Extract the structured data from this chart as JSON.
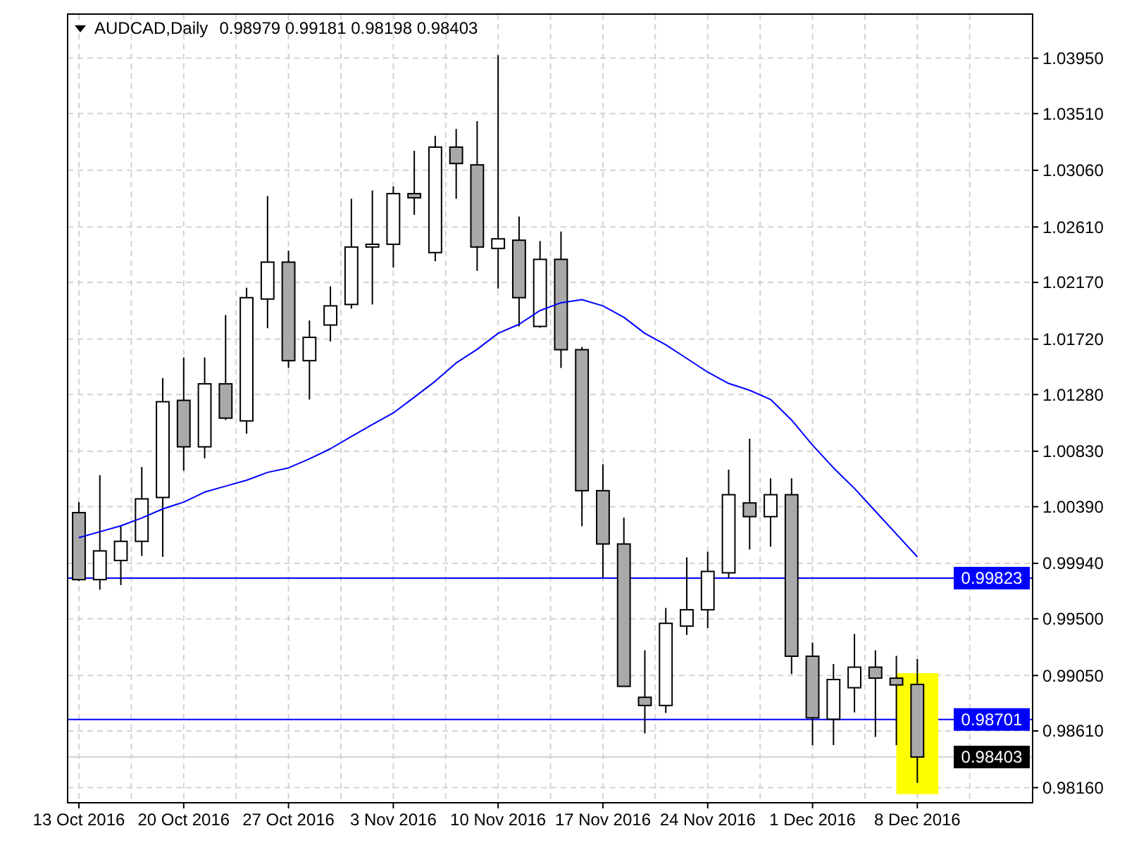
{
  "chart_data": {
    "type": "candlestick",
    "title": "AUDCAD,Daily",
    "subtitle": "0.98979 0.99181 0.98198 0.98403",
    "categories": [
      "13 Oct 2016",
      null,
      null,
      null,
      null,
      "20 Oct 2016",
      null,
      null,
      null,
      null,
      "27 Oct 2016",
      null,
      null,
      null,
      null,
      "3 Nov 2016",
      null,
      null,
      null,
      null,
      "10 Nov 2016",
      null,
      null,
      null,
      null,
      "17 Nov 2016",
      null,
      null,
      null,
      null,
      "24 Nov 2016",
      null,
      null,
      null,
      null,
      "1 Dec 2016",
      null,
      null,
      null,
      null,
      "8 Dec 2016"
    ],
    "ohlc": [
      [
        1.00343,
        1.00426,
        0.998,
        0.99811
      ],
      [
        0.99811,
        1.0064,
        0.99731,
        1.00039
      ],
      [
        0.99963,
        1.00238,
        0.99768,
        1.00115
      ],
      [
        1.00115,
        1.00705,
        0.99999,
        1.00452
      ],
      [
        1.00463,
        1.01411,
        0.99992,
        1.01223
      ],
      [
        1.01234,
        1.01574,
        1.00676,
        1.00865
      ],
      [
        1.00865,
        1.01574,
        1.00774,
        1.01365
      ],
      [
        1.01365,
        1.01911,
        1.01078,
        1.01093
      ],
      [
        1.01071,
        1.02128,
        1.00969,
        1.02049
      ],
      [
        1.02038,
        1.02856,
        1.01806,
        1.02331
      ],
      [
        1.02331,
        1.02422,
        1.01491,
        1.01549
      ],
      [
        1.01549,
        1.01868,
        1.01241,
        1.01734
      ],
      [
        1.01832,
        1.02139,
        1.01701,
        1.01984
      ],
      [
        1.01995,
        1.02834,
        1.01962,
        1.02451
      ],
      [
        1.02451,
        1.029,
        1.01995,
        1.02473
      ],
      [
        1.02473,
        1.02932,
        1.02288,
        1.02875
      ],
      [
        1.02875,
        1.03215,
        1.02707,
        1.02842
      ],
      [
        1.02407,
        1.03334,
        1.02338,
        1.03244
      ],
      [
        1.03244,
        1.03388,
        1.02834,
        1.03114
      ],
      [
        1.03103,
        1.0345,
        1.02262,
        1.02451
      ],
      [
        1.0244,
        1.03975,
        1.02121,
        1.02516
      ],
      [
        1.02505,
        1.02693,
        1.01821,
        1.02049
      ],
      [
        1.01821,
        1.02498,
        1.0181,
        1.02353
      ],
      [
        1.02353,
        1.02574,
        1.01491,
        1.01636
      ],
      [
        1.01636,
        1.01658,
        1.00235,
        1.00517
      ],
      [
        1.00517,
        1.00727,
        0.99829,
        1.00094
      ],
      [
        1.00094,
        1.00303,
        0.98964,
        0.98964
      ],
      [
        0.98877,
        0.9925,
        0.9859,
        0.98812
      ],
      [
        0.98812,
        0.99586,
        0.98753,
        0.99464
      ],
      [
        0.99442,
        0.99988,
        0.99372,
        0.99572
      ],
      [
        0.99572,
        1.00032,
        0.99427,
        0.99876
      ],
      [
        0.99865,
        1.00684,
        0.99822,
        1.00485
      ],
      [
        1.0042,
        1.0093,
        1.0005,
        1.00311
      ],
      [
        1.00311,
        1.00615,
        1.00072,
        1.00485
      ],
      [
        1.00485,
        1.00615,
        0.99062,
        0.99203
      ],
      [
        0.99203,
        0.99312,
        0.98497,
        0.98714
      ],
      [
        0.98703,
        0.99141,
        0.98497,
        0.99018
      ],
      [
        0.98953,
        0.9938,
        0.98757,
        0.99116
      ],
      [
        0.99116,
        0.9925,
        0.98562,
        0.99029
      ],
      [
        0.99029,
        0.99206,
        0.98497,
        0.98975
      ],
      [
        0.98979,
        0.99181,
        0.98198,
        0.98403
      ]
    ],
    "colors": [
      "#a9a9a9",
      "#ffffff",
      "#ffffff",
      "#ffffff",
      "#ffffff",
      "#a9a9a9",
      "#ffffff",
      "#a9a9a9",
      "#ffffff",
      "#ffffff",
      "#a9a9a9",
      "#ffffff",
      "#ffffff",
      "#ffffff",
      "#ffffff",
      "#ffffff",
      "#a9a9a9",
      "#ffffff",
      "#a9a9a9",
      "#a9a9a9",
      "#ffffff",
      "#a9a9a9",
      "#ffffff",
      "#a9a9a9",
      "#a9a9a9",
      "#a9a9a9",
      "#a9a9a9",
      "#a9a9a9",
      "#ffffff",
      "#ffffff",
      "#ffffff",
      "#ffffff",
      "#a9a9a9",
      "#ffffff",
      "#a9a9a9",
      "#a9a9a9",
      "#ffffff",
      "#ffffff",
      "#a9a9a9",
      "#a9a9a9",
      "#a9a9a9"
    ],
    "series": [
      {
        "type": "line",
        "color": "#0000ff",
        "values": [
          1.00144,
          1.00191,
          1.00238,
          1.003,
          1.00372,
          1.00426,
          1.00506,
          1.00553,
          1.006,
          1.00662,
          1.00698,
          1.0077,
          1.0085,
          1.00947,
          1.01042,
          1.01134,
          1.01259,
          1.01386,
          1.01531,
          1.01639,
          1.01766,
          1.01838,
          1.01947,
          1.02009,
          1.02034,
          1.01984,
          1.01893,
          1.01766,
          1.01675,
          1.01567,
          1.01458,
          1.01368,
          1.01314,
          1.01241,
          1.01078,
          1.00879,
          1.00698,
          1.00535,
          1.00354,
          1.00173,
          0.99992
        ]
      }
    ],
    "ylim": [
      0.9804,
      1.043
    ],
    "yticks": [
      {
        "value": 1.0395,
        "label": "1.03950"
      },
      {
        "value": 1.0351,
        "label": "1.03510"
      },
      {
        "value": 1.0306,
        "label": "1.03060"
      },
      {
        "value": 1.0261,
        "label": "1.02610"
      },
      {
        "value": 1.0217,
        "label": "1.02170"
      },
      {
        "value": 1.0172,
        "label": "1.01720"
      },
      {
        "value": 1.0128,
        "label": "1.01280"
      },
      {
        "value": 1.0083,
        "label": "1.00830"
      },
      {
        "value": 1.0039,
        "label": "1.00390"
      },
      {
        "value": 0.9994,
        "label": "0.99940"
      },
      {
        "value": 0.995,
        "label": "0.99500"
      },
      {
        "value": 0.9905,
        "label": "0.99050"
      },
      {
        "value": 0.9861,
        "label": "0.98610"
      },
      {
        "value": 0.9816,
        "label": "0.98160"
      }
    ],
    "ref_lines": [
      {
        "axis": "y",
        "value": 0.99823,
        "label": "0.99823",
        "color": "#0000ff"
      },
      {
        "axis": "y",
        "value": 0.98701,
        "label": "0.98701",
        "color": "#0000ff"
      },
      {
        "axis": "y",
        "value": 0.98403,
        "label": "0.98403",
        "color": "#d3d3d3"
      }
    ],
    "grid": true
  }
}
